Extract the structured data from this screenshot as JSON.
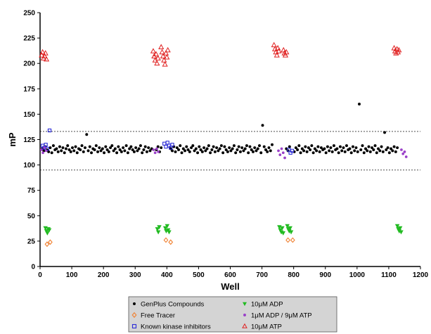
{
  "chart_data": {
    "type": "scatter",
    "title": "",
    "xlabel": "Well",
    "ylabel": "mP",
    "xlim": [
      0,
      1200
    ],
    "ylim": [
      0,
      250
    ],
    "x_ticks": [
      0,
      100,
      200,
      300,
      400,
      500,
      600,
      700,
      800,
      900,
      1000,
      1100,
      1200
    ],
    "y_ticks": [
      0,
      25,
      50,
      75,
      100,
      125,
      150,
      175,
      200,
      225,
      250
    ],
    "grid": false,
    "reference_lines": [
      133,
      95
    ],
    "legend_position": "bottom-center",
    "series": [
      {
        "name": "GenPlus Compounds",
        "marker": "circle",
        "color": "#000000",
        "points": [
          [
            7,
            116
          ],
          [
            12,
            114
          ],
          [
            17,
            118
          ],
          [
            22,
            115
          ],
          [
            27,
            113
          ],
          [
            32,
            117
          ],
          [
            37,
            112
          ],
          [
            42,
            119
          ],
          [
            47,
            115
          ],
          [
            52,
            116
          ],
          [
            57,
            113
          ],
          [
            62,
            118
          ],
          [
            67,
            114
          ],
          [
            72,
            117
          ],
          [
            77,
            112
          ],
          [
            82,
            116
          ],
          [
            87,
            119
          ],
          [
            92,
            115
          ],
          [
            97,
            113
          ],
          [
            102,
            117
          ],
          [
            107,
            114
          ],
          [
            112,
            118
          ],
          [
            117,
            112
          ],
          [
            122,
            116
          ],
          [
            127,
            115
          ],
          [
            132,
            119
          ],
          [
            137,
            113
          ],
          [
            142,
            117
          ],
          [
            147,
            130
          ],
          [
            152,
            114
          ],
          [
            157,
            118
          ],
          [
            162,
            112
          ],
          [
            167,
            116
          ],
          [
            172,
            115
          ],
          [
            177,
            119
          ],
          [
            182,
            113
          ],
          [
            187,
            117
          ],
          [
            192,
            114
          ],
          [
            197,
            116
          ],
          [
            202,
            112
          ],
          [
            207,
            118
          ],
          [
            212,
            115
          ],
          [
            217,
            113
          ],
          [
            222,
            117
          ],
          [
            227,
            119
          ],
          [
            232,
            114
          ],
          [
            237,
            116
          ],
          [
            242,
            112
          ],
          [
            247,
            118
          ],
          [
            252,
            115
          ],
          [
            257,
            113
          ],
          [
            262,
            117
          ],
          [
            267,
            114
          ],
          [
            272,
            119
          ],
          [
            277,
            112
          ],
          [
            282,
            116
          ],
          [
            287,
            118
          ],
          [
            292,
            115
          ],
          [
            297,
            113
          ],
          [
            302,
            117
          ],
          [
            307,
            114
          ],
          [
            312,
            116
          ],
          [
            317,
            119
          ],
          [
            322,
            112
          ],
          [
            327,
            115
          ],
          [
            332,
            118
          ],
          [
            337,
            113
          ],
          [
            342,
            117
          ],
          [
            347,
            114
          ],
          [
            352,
            116
          ],
          [
            367,
            115
          ],
          [
            372,
            118
          ],
          [
            377,
            113
          ],
          [
            382,
            117
          ],
          [
            412,
            116
          ],
          [
            417,
            114
          ],
          [
            422,
            118
          ],
          [
            427,
            113
          ],
          [
            432,
            117
          ],
          [
            437,
            115
          ],
          [
            442,
            119
          ],
          [
            447,
            112
          ],
          [
            452,
            116
          ],
          [
            457,
            114
          ],
          [
            462,
            118
          ],
          [
            467,
            115
          ],
          [
            472,
            113
          ],
          [
            477,
            117
          ],
          [
            482,
            119
          ],
          [
            487,
            114
          ],
          [
            492,
            116
          ],
          [
            497,
            112
          ],
          [
            502,
            118
          ],
          [
            507,
            115
          ],
          [
            512,
            113
          ],
          [
            517,
            117
          ],
          [
            522,
            114
          ],
          [
            527,
            116
          ],
          [
            532,
            119
          ],
          [
            537,
            112
          ],
          [
            542,
            115
          ],
          [
            547,
            118
          ],
          [
            552,
            113
          ],
          [
            557,
            117
          ],
          [
            562,
            114
          ],
          [
            567,
            116
          ],
          [
            572,
            119
          ],
          [
            577,
            112
          ],
          [
            582,
            118
          ],
          [
            587,
            115
          ],
          [
            592,
            113
          ],
          [
            597,
            117
          ],
          [
            602,
            114
          ],
          [
            607,
            116
          ],
          [
            612,
            119
          ],
          [
            617,
            112
          ],
          [
            622,
            115
          ],
          [
            627,
            118
          ],
          [
            632,
            113
          ],
          [
            637,
            117
          ],
          [
            642,
            114
          ],
          [
            647,
            116
          ],
          [
            652,
            119
          ],
          [
            657,
            112
          ],
          [
            662,
            118
          ],
          [
            667,
            115
          ],
          [
            672,
            113
          ],
          [
            677,
            117
          ],
          [
            682,
            114
          ],
          [
            687,
            116
          ],
          [
            692,
            119
          ],
          [
            697,
            112
          ],
          [
            702,
            139
          ],
          [
            707,
            118
          ],
          [
            712,
            115
          ],
          [
            717,
            113
          ],
          [
            722,
            117
          ],
          [
            727,
            114
          ],
          [
            732,
            120
          ],
          [
            777,
            116
          ],
          [
            782,
            114
          ],
          [
            787,
            118
          ],
          [
            802,
            113
          ],
          [
            807,
            117
          ],
          [
            812,
            115
          ],
          [
            817,
            119
          ],
          [
            822,
            112
          ],
          [
            827,
            116
          ],
          [
            832,
            114
          ],
          [
            837,
            118
          ],
          [
            842,
            113
          ],
          [
            847,
            117
          ],
          [
            852,
            115
          ],
          [
            857,
            119
          ],
          [
            862,
            112
          ],
          [
            867,
            116
          ],
          [
            872,
            114
          ],
          [
            877,
            118
          ],
          [
            882,
            113
          ],
          [
            887,
            117
          ],
          [
            892,
            115
          ],
          [
            897,
            116
          ],
          [
            902,
            112
          ],
          [
            907,
            118
          ],
          [
            912,
            114
          ],
          [
            917,
            117
          ],
          [
            922,
            113
          ],
          [
            927,
            119
          ],
          [
            932,
            115
          ],
          [
            937,
            116
          ],
          [
            942,
            112
          ],
          [
            947,
            118
          ],
          [
            952,
            114
          ],
          [
            957,
            117
          ],
          [
            962,
            113
          ],
          [
            967,
            119
          ],
          [
            972,
            115
          ],
          [
            977,
            116
          ],
          [
            982,
            112
          ],
          [
            987,
            118
          ],
          [
            992,
            114
          ],
          [
            997,
            117
          ],
          [
            1002,
            113
          ],
          [
            1007,
            160
          ],
          [
            1012,
            115
          ],
          [
            1017,
            119
          ],
          [
            1022,
            112
          ],
          [
            1027,
            116
          ],
          [
            1032,
            114
          ],
          [
            1037,
            118
          ],
          [
            1042,
            113
          ],
          [
            1047,
            117
          ],
          [
            1052,
            115
          ],
          [
            1057,
            119
          ],
          [
            1062,
            112
          ],
          [
            1067,
            116
          ],
          [
            1072,
            114
          ],
          [
            1077,
            118
          ],
          [
            1082,
            113
          ],
          [
            1087,
            132
          ],
          [
            1092,
            115
          ],
          [
            1097,
            117
          ],
          [
            1102,
            112
          ],
          [
            1107,
            116
          ],
          [
            1112,
            114
          ],
          [
            1117,
            118
          ],
          [
            1122,
            113
          ],
          [
            1127,
            117
          ]
        ]
      },
      {
        "name": "Free Tracer",
        "marker": "diamond",
        "color": "#f08030",
        "points": [
          [
            22,
            22
          ],
          [
            32,
            24
          ],
          [
            397,
            26
          ],
          [
            412,
            24
          ],
          [
            782,
            26
          ],
          [
            797,
            26
          ]
        ]
      },
      {
        "name": "Known kinase inhibitors",
        "marker": "square",
        "color": "#2b2bd6",
        "points": [
          [
            8,
            119
          ],
          [
            13,
            117
          ],
          [
            18,
            120
          ],
          [
            23,
            116
          ],
          [
            30,
            134
          ],
          [
            392,
            121
          ],
          [
            397,
            118
          ],
          [
            402,
            122
          ],
          [
            407,
            119
          ],
          [
            412,
            117
          ],
          [
            417,
            120
          ],
          [
            785,
            115
          ],
          [
            790,
            112
          ],
          [
            795,
            114
          ]
        ]
      },
      {
        "name": "10μM ADP",
        "marker": "triangle-down",
        "color": "#22bb22",
        "points": [
          [
            17,
            38
          ],
          [
            20,
            35
          ],
          [
            23,
            33
          ],
          [
            26,
            37
          ],
          [
            29,
            36
          ],
          [
            370,
            37
          ],
          [
            373,
            34
          ],
          [
            376,
            39
          ],
          [
            395,
            38
          ],
          [
            398,
            35
          ],
          [
            401,
            40
          ],
          [
            404,
            36
          ],
          [
            407,
            34
          ],
          [
            755,
            39
          ],
          [
            758,
            36
          ],
          [
            761,
            34
          ],
          [
            764,
            38
          ],
          [
            767,
            33
          ],
          [
            780,
            40
          ],
          [
            783,
            37
          ],
          [
            786,
            35
          ],
          [
            789,
            38
          ],
          [
            792,
            34
          ],
          [
            1127,
            40
          ],
          [
            1130,
            37
          ],
          [
            1133,
            35
          ],
          [
            1136,
            38
          ],
          [
            1139,
            34
          ]
        ]
      },
      {
        "name": "1μM ADP / 9μM ATP",
        "marker": "circle",
        "color": "#9a40c8",
        "points": [
          [
            4,
            115
          ],
          [
            9,
            112
          ],
          [
            14,
            117
          ],
          [
            19,
            114
          ],
          [
            358,
            115
          ],
          [
            363,
            112
          ],
          [
            368,
            116
          ],
          [
            373,
            113
          ],
          [
            752,
            114
          ],
          [
            757,
            110
          ],
          [
            762,
            116
          ],
          [
            767,
            112
          ],
          [
            772,
            107
          ],
          [
            1140,
            115
          ],
          [
            1145,
            111
          ],
          [
            1150,
            113
          ],
          [
            1155,
            108
          ]
        ]
      },
      {
        "name": "10μM ATP",
        "marker": "triangle",
        "color": "#e02020",
        "points": [
          [
            5,
            208
          ],
          [
            8,
            211
          ],
          [
            11,
            205
          ],
          [
            14,
            207
          ],
          [
            17,
            210
          ],
          [
            20,
            204
          ],
          [
            357,
            212
          ],
          [
            360,
            207
          ],
          [
            363,
            203
          ],
          [
            366,
            209
          ],
          [
            369,
            200
          ],
          [
            372,
            205
          ],
          [
            382,
            216
          ],
          [
            385,
            211
          ],
          [
            388,
            207
          ],
          [
            391,
            203
          ],
          [
            394,
            199
          ],
          [
            397,
            210
          ],
          [
            400,
            206
          ],
          [
            403,
            213
          ],
          [
            738,
            218
          ],
          [
            741,
            214
          ],
          [
            744,
            211
          ],
          [
            747,
            208
          ],
          [
            750,
            215
          ],
          [
            753,
            212
          ],
          [
            768,
            213
          ],
          [
            771,
            210
          ],
          [
            774,
            208
          ],
          [
            777,
            211
          ],
          [
            1117,
            215
          ],
          [
            1120,
            212
          ],
          [
            1123,
            210
          ],
          [
            1126,
            214
          ],
          [
            1129,
            211
          ],
          [
            1132,
            213
          ]
        ]
      }
    ]
  }
}
